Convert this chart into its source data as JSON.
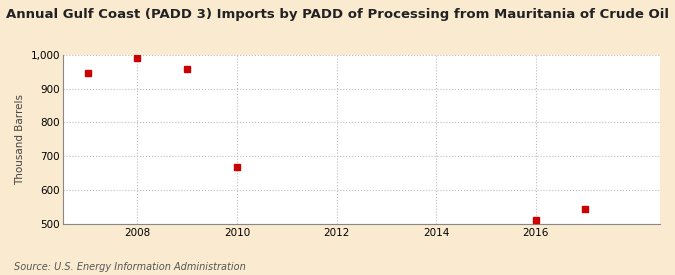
{
  "title": "Annual Gulf Coast (PADD 3) Imports by PADD of Processing from Mauritania of Crude Oil",
  "ylabel": "Thousand Barrels",
  "source": "Source: U.S. Energy Information Administration",
  "x_values": [
    2007,
    2008,
    2009,
    2010,
    2016,
    2017
  ],
  "y_values": [
    947,
    990,
    957,
    668,
    510,
    543
  ],
  "marker_color": "#cc0000",
  "marker_size": 4,
  "xlim": [
    2006.5,
    2018.5
  ],
  "ylim": [
    500,
    1000
  ],
  "yticks": [
    500,
    600,
    700,
    800,
    900,
    1000
  ],
  "xticks": [
    2008,
    2010,
    2012,
    2014,
    2016
  ],
  "background_color": "#faebd0",
  "plot_bg_color": "#ffffff",
  "grid_color": "#bbbbbb",
  "title_fontsize": 9.5,
  "label_fontsize": 7.5,
  "tick_fontsize": 7.5,
  "source_fontsize": 7
}
